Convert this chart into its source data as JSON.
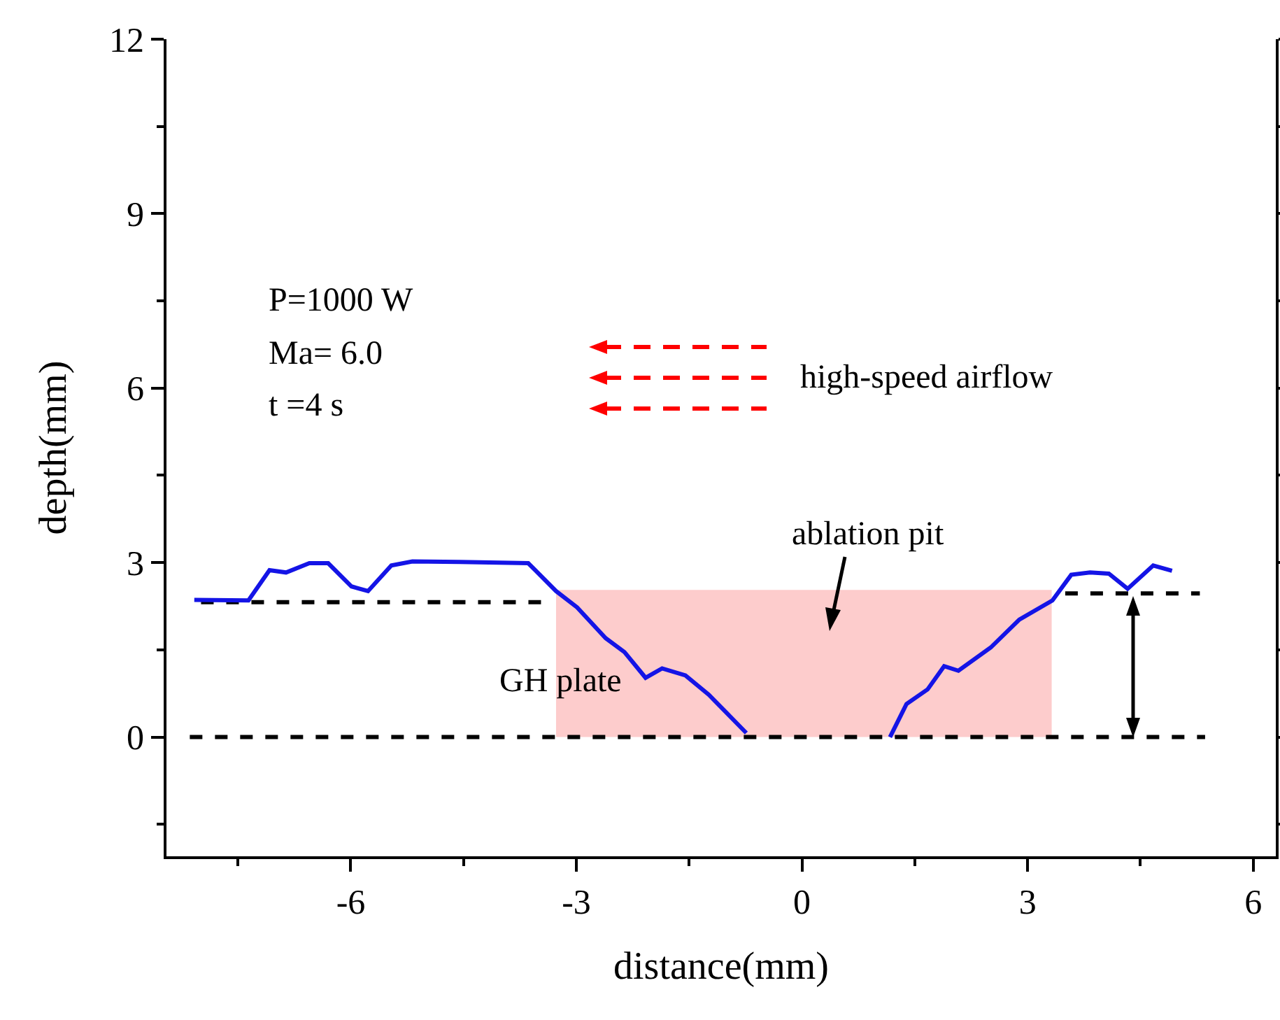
{
  "chart_data": {
    "type": "line",
    "xlabel": "distance(mm)",
    "ylabel": "depth(mm)",
    "xlim": [
      -8.45,
      6.3
    ],
    "xticks": [
      {
        "value": -7.5,
        "label": null
      },
      -6,
      {
        "value": -4.5,
        "label": null
      },
      -3,
      {
        "value": -1.5,
        "label": null
      },
      0,
      {
        "value": 1.5,
        "label": null
      },
      3,
      {
        "value": 4.5,
        "label": null
      },
      6
    ],
    "ylim": [
      -2.05,
      12
    ],
    "yticks": [
      {
        "value": -1.5,
        "label": null
      },
      0,
      {
        "value": 1.5,
        "label": null
      },
      3,
      {
        "value": 4.5,
        "label": null
      },
      6,
      {
        "value": 7.5,
        "label": null
      },
      9,
      {
        "value": 10.5,
        "label": null
      },
      12
    ],
    "grid": false,
    "marker": "none",
    "series": [
      {
        "type": "area",
        "color": "#fdcccc",
        "x": [
          -3.27,
          3.32
        ],
        "values": [
          2.53,
          2.53
        ]
      },
      {
        "color": "#000000",
        "line_style": "dashed",
        "x": [
          -7.99,
          -3.43
        ],
        "values": [
          2.32,
          2.32
        ]
      },
      {
        "color": "#000000",
        "line_style": "dashed",
        "x": [
          3.5,
          5.29
        ],
        "values": [
          2.47,
          2.47
        ]
      },
      {
        "color": "#000000",
        "line_style": "dashed",
        "x": [
          -8.14,
          5.36
        ],
        "values": [
          0,
          0
        ]
      },
      {
        "color": "#1414e6",
        "line_style": "solid",
        "x": [
          -8.08,
          -7.36,
          -7.08,
          -6.86,
          -6.55,
          -6.3,
          -5.99,
          -5.77,
          -5.46,
          -5.18,
          -4.55,
          -3.64,
          -3.27,
          -2.99,
          -2.61,
          -2.36,
          -2.08,
          -1.86,
          -1.55,
          -1.24,
          -0.74,
          0.2,
          1.17,
          1.39,
          1.67,
          1.89,
          2.08,
          2.51,
          2.89,
          3.33,
          3.58,
          3.83,
          4.08,
          4.33,
          4.67,
          4.92
        ],
        "values": [
          2.36,
          2.35,
          2.87,
          2.83,
          2.99,
          2.99,
          2.59,
          2.51,
          2.95,
          3.02,
          3.01,
          2.99,
          2.51,
          2.23,
          1.7,
          1.46,
          1.02,
          1.18,
          1.06,
          0.73,
          0.07,
          null,
          0.0,
          0.57,
          0.82,
          1.22,
          1.14,
          1.54,
          2.02,
          2.35,
          2.79,
          2.83,
          2.81,
          2.55,
          2.95,
          2.86
        ]
      }
    ],
    "annotations": [
      "P=1000 W",
      "Ma= 6.0",
      "t =4 s",
      "high-speed airflow",
      "GH plate",
      "ablation pit"
    ]
  }
}
